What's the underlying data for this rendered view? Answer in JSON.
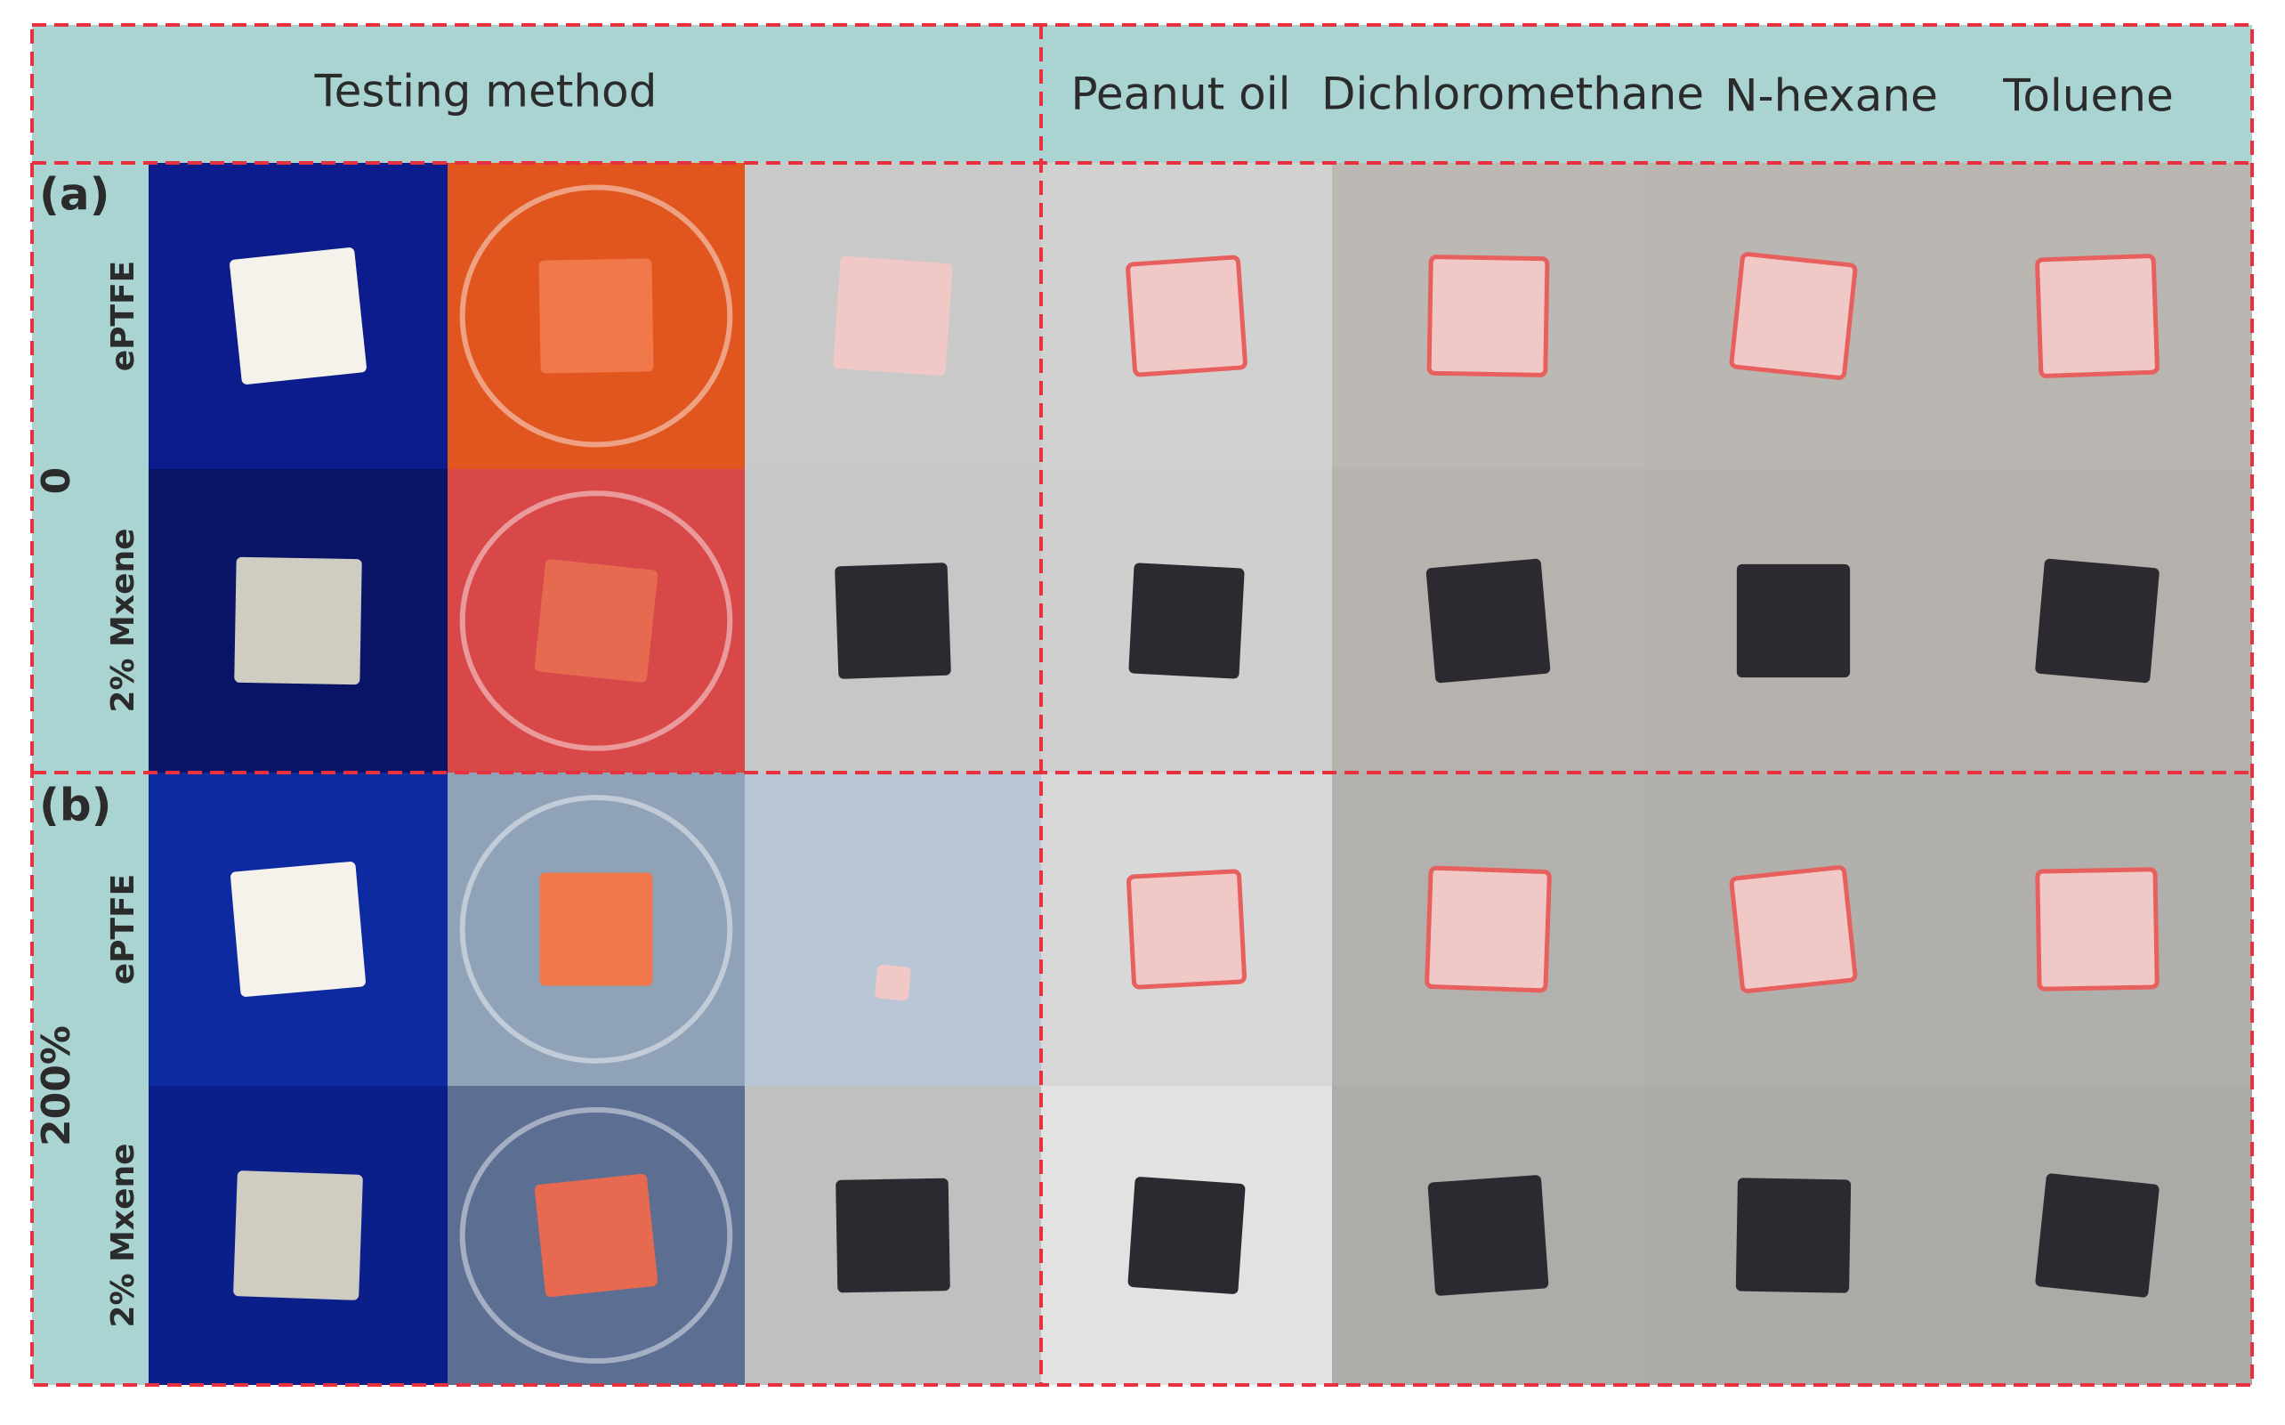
{
  "header": {
    "method": "Testing method",
    "solvents": [
      "Peanut oil",
      "Dichloromethane",
      "N-hexane",
      "Toluene"
    ]
  },
  "panels": [
    {
      "label": "(a)",
      "strain": "0",
      "rows": [
        "ePTFE",
        "2% Mxene"
      ]
    },
    {
      "label": "(b)",
      "strain": "200%",
      "rows": [
        "ePTFE",
        "2% Mxene"
      ]
    }
  ]
}
